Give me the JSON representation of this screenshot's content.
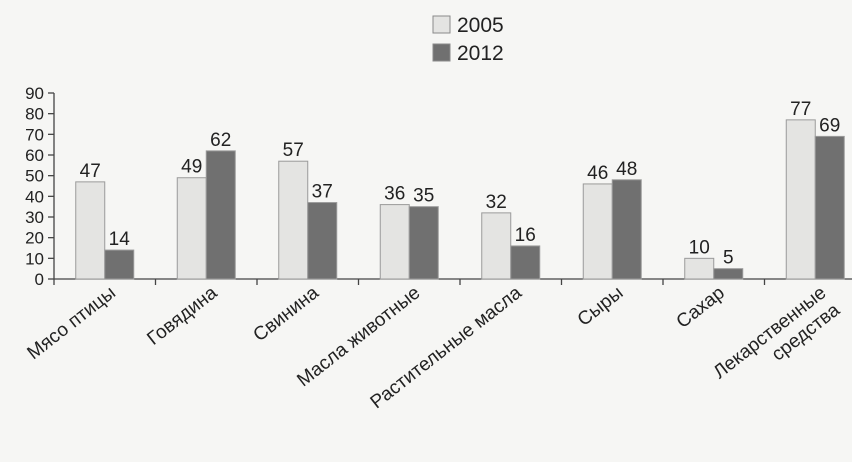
{
  "chart_data": {
    "type": "bar",
    "categories": [
      [
        "Мясо птицы"
      ],
      [
        "Говядина"
      ],
      [
        "Свинина"
      ],
      [
        "Масла животные"
      ],
      [
        "Растительные масла"
      ],
      [
        "Сыры"
      ],
      [
        "Сахар"
      ],
      [
        "Лекарственные",
        "средства"
      ]
    ],
    "series": [
      {
        "name": "2005",
        "values": [
          47,
          49,
          57,
          36,
          32,
          46,
          10,
          77
        ],
        "color": "#e4e4e2"
      },
      {
        "name": "2012",
        "values": [
          14,
          62,
          37,
          35,
          16,
          48,
          5,
          69
        ],
        "color": "#707070"
      }
    ],
    "y_ticks": [
      "0",
      "10",
      "20",
      "30",
      "40",
      "50",
      "60",
      "70",
      "80",
      "90"
    ],
    "ylim": [
      0,
      90
    ],
    "legend_position": "top-center",
    "grid": false,
    "title": "",
    "xlabel": "",
    "ylabel": ""
  }
}
